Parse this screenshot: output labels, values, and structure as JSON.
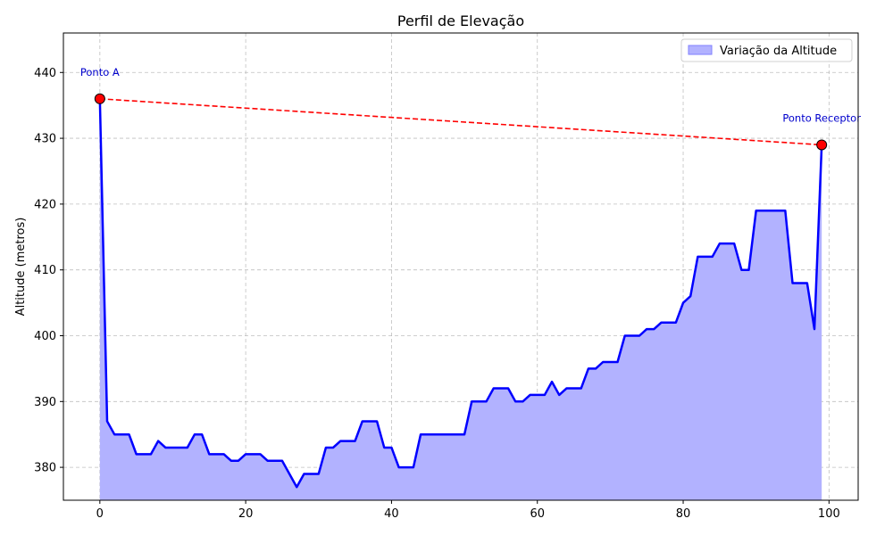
{
  "chart_data": {
    "type": "area",
    "title": "Perfil de Elevação",
    "xlabel": "",
    "ylabel": "Altitude (metros)",
    "xlim": [
      -5,
      104
    ],
    "ylim": [
      375,
      446
    ],
    "xticks": [
      0,
      20,
      40,
      60,
      80,
      100
    ],
    "yticks": [
      380,
      390,
      400,
      410,
      420,
      430,
      440
    ],
    "xtick_labels": [
      "0",
      "20",
      "40",
      "60",
      "80",
      "100"
    ],
    "ytick_labels": [
      "380",
      "390",
      "400",
      "410",
      "420",
      "430",
      "440"
    ],
    "grid": true,
    "legend": {
      "placement": "top-right",
      "entries": [
        "Variação da Altitude"
      ]
    },
    "series": [
      {
        "name": "Variação da Altitude",
        "x": [
          0,
          1,
          2,
          3,
          4,
          5,
          6,
          7,
          8,
          9,
          10,
          11,
          12,
          13,
          14,
          15,
          16,
          17,
          18,
          19,
          20,
          21,
          22,
          23,
          24,
          25,
          26,
          27,
          28,
          29,
          30,
          31,
          32,
          33,
          34,
          35,
          36,
          37,
          38,
          39,
          40,
          41,
          42,
          43,
          44,
          45,
          46,
          47,
          48,
          49,
          50,
          51,
          52,
          53,
          54,
          55,
          56,
          57,
          58,
          59,
          60,
          61,
          62,
          63,
          64,
          65,
          66,
          67,
          68,
          69,
          70,
          71,
          72,
          73,
          74,
          75,
          76,
          77,
          78,
          79,
          80,
          81,
          82,
          83,
          84,
          85,
          86,
          87,
          88,
          89,
          90,
          91,
          92,
          93,
          94,
          95,
          96,
          97,
          98,
          99
        ],
        "values": [
          436,
          387,
          385,
          385,
          385,
          382,
          382,
          382,
          384,
          383,
          383,
          383,
          383,
          385,
          385,
          382,
          382,
          382,
          381,
          381,
          382,
          382,
          382,
          381,
          381,
          381,
          379,
          377,
          379,
          379,
          379,
          383,
          383,
          384,
          384,
          384,
          387,
          387,
          387,
          383,
          383,
          380,
          380,
          380,
          385,
          385,
          385,
          385,
          385,
          385,
          385,
          390,
          390,
          390,
          392,
          392,
          392,
          390,
          390,
          391,
          391,
          391,
          393,
          391,
          392,
          392,
          392,
          395,
          395,
          396,
          396,
          396,
          400,
          400,
          400,
          401,
          401,
          402,
          402,
          402,
          405,
          406,
          412,
          412,
          412,
          414,
          414,
          414,
          410,
          410,
          419,
          419,
          419,
          419,
          419,
          408,
          408,
          408,
          401,
          429
        ],
        "line_color": "#0000ff",
        "fill_color": "#b2b2ff"
      }
    ],
    "sight_line": {
      "from": [
        0,
        436
      ],
      "to": [
        99,
        429
      ],
      "color": "#ff0000",
      "style": "dashed"
    },
    "endpoints": [
      {
        "x": 0,
        "y": 436,
        "label": "Ponto A",
        "color": "#ff0000"
      },
      {
        "x": 99,
        "y": 429,
        "label": "Ponto Receptor",
        "color": "#ff0000"
      }
    ],
    "annotation_color": "#0000cc"
  }
}
